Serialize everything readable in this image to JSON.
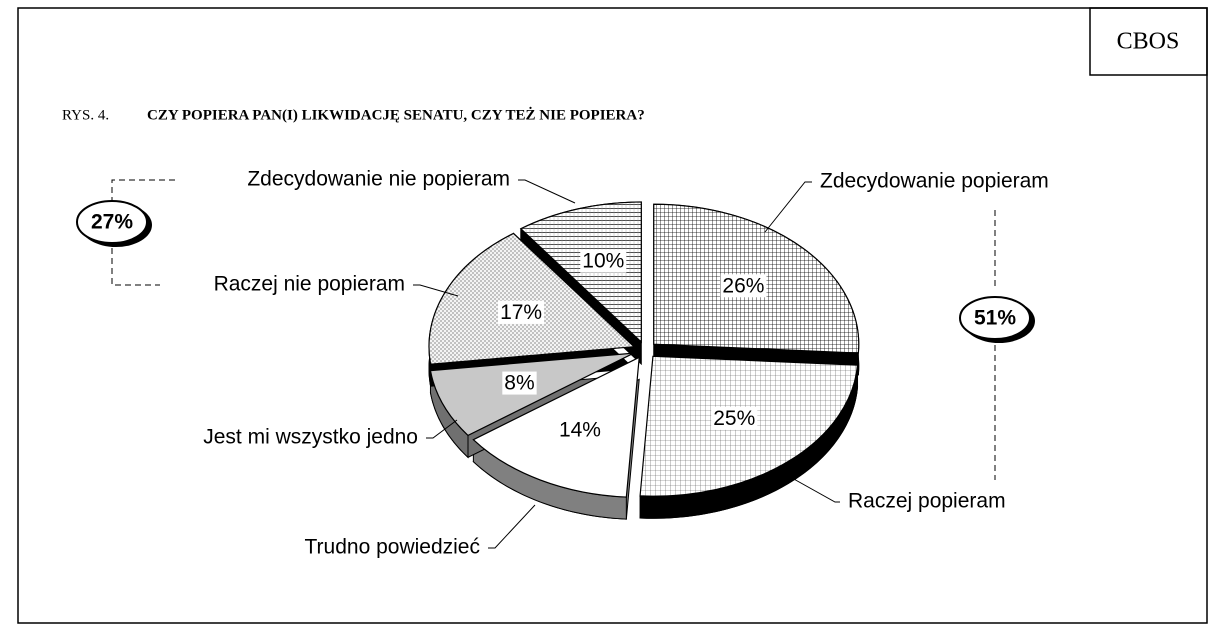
{
  "chart_data": {
    "type": "pie",
    "source": "CBOS",
    "figure_label": "RYS. 4.",
    "title": "CZY POPIERA PAN(I) LIKWIDACJĘ SENATU, CZY TEŻ NIE POPIERA?",
    "categories": [
      "Zdecydowanie popieram",
      "Raczej popieram",
      "Trudno powiedzieć",
      "Jest mi wszystko jedno",
      "Raczej nie popieram",
      "Zdecydowanie nie popieram"
    ],
    "values": [
      26,
      25,
      14,
      8,
      17,
      10
    ],
    "value_labels": [
      "26%",
      "25%",
      "14%",
      "8%",
      "17%",
      "10%"
    ],
    "colors": [
      "#ffffff",
      "#ffffff",
      "#ffffff",
      "#c8c8c8",
      "#f2f2f2",
      "#ffffff"
    ],
    "patterns": [
      "grid",
      "fine-grid",
      "none",
      "none",
      "dots",
      "hlines"
    ],
    "side_colors": [
      "#000000",
      "#000000",
      "#808080",
      "#707070",
      "#000000",
      "#000000"
    ],
    "annotations": [
      "51%",
      "27%"
    ]
  }
}
